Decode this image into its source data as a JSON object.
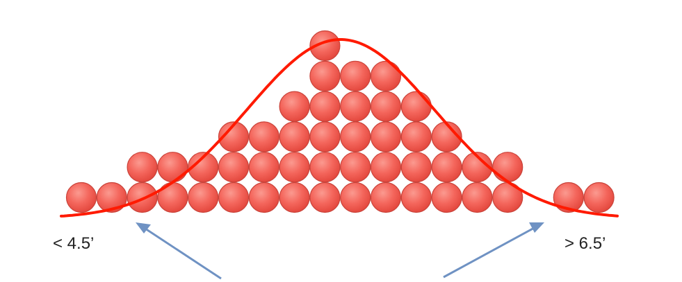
{
  "diagram": {
    "type": "dot-histogram-with-normal-curve",
    "columns": [
      {
        "count": 1
      },
      {
        "count": 1
      },
      {
        "count": 2
      },
      {
        "count": 2
      },
      {
        "count": 2
      },
      {
        "count": 3
      },
      {
        "count": 3
      },
      {
        "count": 4
      },
      {
        "count": 6
      },
      {
        "count": 5
      },
      {
        "count": 5
      },
      {
        "count": 4
      },
      {
        "count": 3
      },
      {
        "count": 2
      },
      {
        "count": 2
      },
      {
        "count": 0
      },
      {
        "count": 1
      },
      {
        "count": 1
      }
    ],
    "annotations": {
      "left": "< 4.5’",
      "right": "> 6.5’"
    },
    "colors": {
      "dot_fill": "#f4665c",
      "dot_stroke": "#c9433a",
      "curve": "#ff1a00",
      "arrow": "#6f92c3"
    }
  }
}
